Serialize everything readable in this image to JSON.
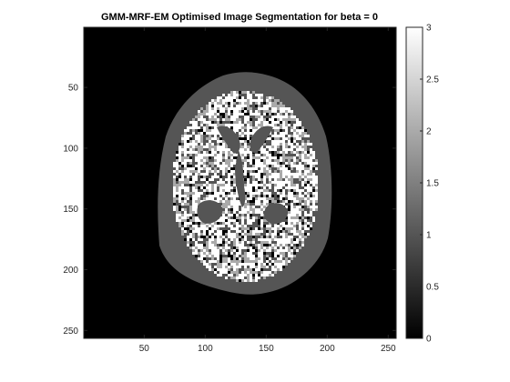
{
  "chart_data": {
    "type": "heatmap",
    "title": "GMM-MRF-EM Optimised Image Segmentation for beta = 0",
    "xlabel": "",
    "ylabel": "",
    "x_ticks": [
      "50",
      "100",
      "150",
      "200",
      "250"
    ],
    "y_ticks": [
      "50",
      "100",
      "150",
      "200",
      "250"
    ],
    "xlim": [
      1,
      256
    ],
    "ylim": [
      1,
      256
    ],
    "y_direction": "reversed",
    "colormap": "gray",
    "colorbar": {
      "range": [
        0,
        3
      ],
      "tick_values": [
        0,
        0.5,
        1,
        1.5,
        2,
        2.5,
        3
      ],
      "tick_labels": [
        "0",
        "0.5",
        "1",
        "1.5",
        "2",
        "2.5",
        "3"
      ]
    },
    "segment_levels": [
      {
        "label": "0",
        "color": "#000000"
      },
      {
        "label": "1",
        "color": "#555555"
      },
      {
        "label": "2",
        "color": "#aaaaaa"
      },
      {
        "label": "3",
        "color": "#ffffff"
      }
    ],
    "grid": false
  }
}
